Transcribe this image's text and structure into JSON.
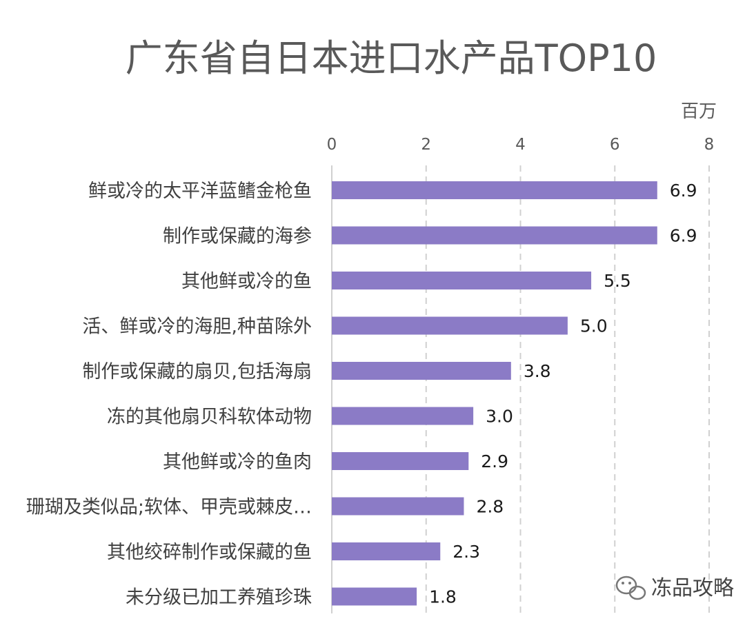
{
  "chart_data": {
    "type": "bar",
    "orientation": "horizontal",
    "title": "广东省自日本进口水产品TOP10",
    "unit_label": "百万",
    "xlim": [
      0,
      8
    ],
    "xticks": [
      0,
      2,
      4,
      6,
      8
    ],
    "grid": true,
    "categories": [
      "鲜或冷的太平洋蓝鳍金枪鱼",
      "制作或保藏的海参",
      "其他鲜或冷的鱼",
      "活、鲜或冷的海胆,种苗除外",
      "制作或保藏的扇贝,包括海扇",
      "冻的其他扇贝科软体动物",
      "其他鲜或冷的鱼肉",
      "珊瑚及类似品;软体、甲壳或棘皮…",
      "其他绞碎制作或保藏的鱼",
      "未分级已加工养殖珍珠"
    ],
    "values": [
      6.9,
      6.9,
      5.5,
      5.0,
      3.8,
      3.0,
      2.9,
      2.8,
      2.3,
      1.8
    ],
    "value_labels": [
      "6.9",
      "6.9",
      "5.5",
      "5.0",
      "3.8",
      "3.0",
      "2.9",
      "2.8",
      "2.3",
      "1.8"
    ],
    "bar_color": "#8b7bc6"
  },
  "watermark": {
    "text": "冻品攻略",
    "icon": "wechat-icon"
  }
}
